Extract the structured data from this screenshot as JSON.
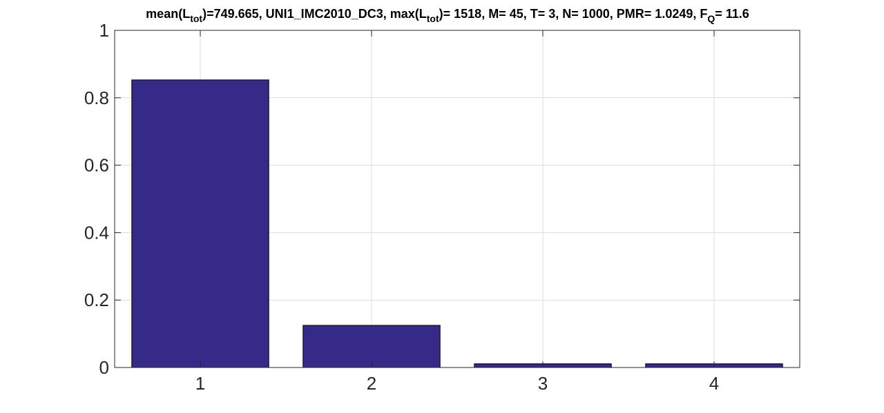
{
  "chart_data": {
    "type": "bar",
    "title_parts": {
      "p1": "mean(L",
      "sub1": "tot",
      "p2": ")=749.665, UNI1_IMC2010_DC3, max(L",
      "sub2": "tot",
      "p3": ")= 1518, M= 45, T= 3, N= 1000, PMR= 1.0249, F",
      "sub3": "Q",
      "p4": "= 11.6"
    },
    "categories": [
      "1",
      "2",
      "3",
      "4"
    ],
    "values": [
      0.853,
      0.125,
      0.011,
      0.011
    ],
    "xlabel": "",
    "ylabel": "",
    "ylim": [
      0,
      1
    ],
    "yticks": [
      "0",
      "0.2",
      "0.4",
      "0.6",
      "0.8",
      "1"
    ],
    "ytick_values": [
      0,
      0.2,
      0.4,
      0.6,
      0.8,
      1
    ],
    "grid": true,
    "bar_color": "#352a87",
    "bar_edge_color": "#000000"
  }
}
